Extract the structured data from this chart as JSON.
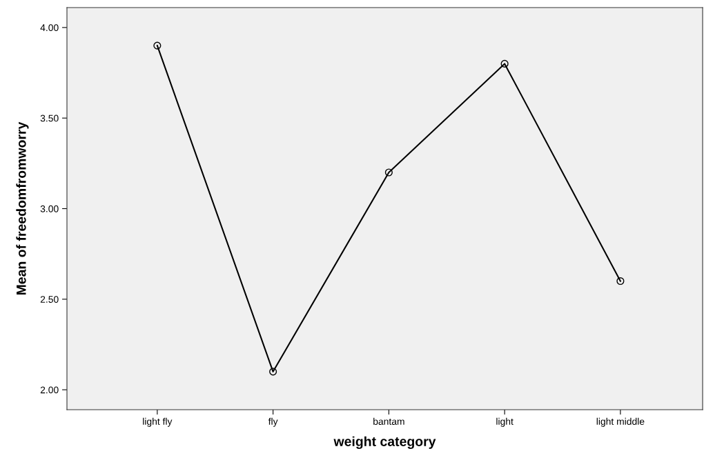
{
  "chart_data": {
    "type": "line",
    "xlabel": "weight category",
    "ylabel": "Mean of freedomfromworry",
    "categories": [
      "light fly",
      "fly",
      "bantam",
      "light",
      "light middle"
    ],
    "values": [
      3.9,
      2.1,
      3.2,
      3.8,
      2.6
    ],
    "color": "#000000",
    "marker": "circle",
    "line_style": "solid",
    "grid": false,
    "legend": false,
    "ylim": [
      1.89,
      4.11
    ],
    "yticks": [
      {
        "value": 2,
        "label": "2.00"
      },
      {
        "value": 2.5,
        "label": "2.50"
      },
      {
        "value": 3,
        "label": "3.00"
      },
      {
        "value": 3.5,
        "label": "3.50"
      },
      {
        "value": 4,
        "label": "4.00"
      }
    ]
  }
}
